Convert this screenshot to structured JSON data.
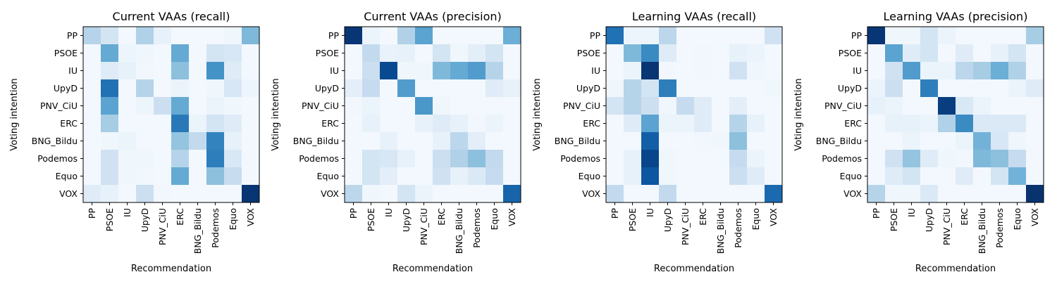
{
  "chart_data": [
    {
      "type": "heatmap",
      "title": "Current VAAs (recall)",
      "xlabel": "Recommendation",
      "ylabel": "Voting intention",
      "categories": [
        "PP",
        "PSOE",
        "IU",
        "UpyD",
        "PNV_CiU",
        "ERC",
        "BNG_Bildu",
        "Podemos",
        "Equo",
        "VOX"
      ],
      "colormap": "Blues",
      "values": [
        [
          0.3,
          0.18,
          0.02,
          0.32,
          0.08,
          0.02,
          0.02,
          0.02,
          0.04,
          0.45
        ],
        [
          0.02,
          0.52,
          0.05,
          0.04,
          0.02,
          0.52,
          0.02,
          0.18,
          0.16,
          0.02
        ],
        [
          0.02,
          0.12,
          0.08,
          0.03,
          0.02,
          0.42,
          0.02,
          0.62,
          0.12,
          0.02
        ],
        [
          0.02,
          0.75,
          0.02,
          0.3,
          0.02,
          0.06,
          0.02,
          0.04,
          0.16,
          0.05
        ],
        [
          0.02,
          0.55,
          0.02,
          0.05,
          0.22,
          0.52,
          0.02,
          0.06,
          0.04,
          0.02
        ],
        [
          0.02,
          0.35,
          0.02,
          0.02,
          0.02,
          0.72,
          0.06,
          0.18,
          0.12,
          0.02
        ],
        [
          0.02,
          0.04,
          0.06,
          0.02,
          0.02,
          0.4,
          0.26,
          0.68,
          0.08,
          0.02
        ],
        [
          0.02,
          0.2,
          0.04,
          0.04,
          0.02,
          0.3,
          0.02,
          0.7,
          0.15,
          0.02
        ],
        [
          0.02,
          0.2,
          0.04,
          0.03,
          0.02,
          0.52,
          0.02,
          0.42,
          0.24,
          0.02
        ],
        [
          0.12,
          0.08,
          0.02,
          0.22,
          0.03,
          0.02,
          0.02,
          0.02,
          0.02,
          0.98
        ]
      ]
    },
    {
      "type": "heatmap",
      "title": "Current VAAs (precision)",
      "xlabel": "Recommendation",
      "ylabel": "Voting intention",
      "categories": [
        "PP",
        "PSOE",
        "IU",
        "UpyD",
        "PNV_CiU",
        "ERC",
        "BNG_Bildu",
        "Podemos",
        "Equo",
        "VOX"
      ],
      "colormap": "Blues",
      "values": [
        [
          0.98,
          0.06,
          0.02,
          0.32,
          0.55,
          0.02,
          0.02,
          0.02,
          0.02,
          0.5
        ],
        [
          0.02,
          0.26,
          0.07,
          0.08,
          0.02,
          0.18,
          0.04,
          0.1,
          0.18,
          0.02
        ],
        [
          0.02,
          0.22,
          0.9,
          0.04,
          0.04,
          0.45,
          0.52,
          0.58,
          0.3,
          0.02
        ],
        [
          0.1,
          0.25,
          0.02,
          0.58,
          0.02,
          0.02,
          0.02,
          0.02,
          0.12,
          0.08
        ],
        [
          0.03,
          0.06,
          0.02,
          0.02,
          0.6,
          0.04,
          0.02,
          0.02,
          0.02,
          0.02
        ],
        [
          0.02,
          0.08,
          0.02,
          0.02,
          0.08,
          0.12,
          0.08,
          0.03,
          0.06,
          0.02
        ],
        [
          0.02,
          0.02,
          0.08,
          0.02,
          0.02,
          0.08,
          0.28,
          0.1,
          0.02,
          0.02
        ],
        [
          0.02,
          0.18,
          0.16,
          0.08,
          0.02,
          0.22,
          0.32,
          0.42,
          0.26,
          0.02
        ],
        [
          0.02,
          0.18,
          0.1,
          0.02,
          0.02,
          0.2,
          0.08,
          0.14,
          0.25,
          0.02
        ],
        [
          0.28,
          0.04,
          0.02,
          0.18,
          0.06,
          0.02,
          0.02,
          0.02,
          0.02,
          0.8
        ]
      ]
    },
    {
      "type": "heatmap",
      "title": "Learning VAAs (recall)",
      "xlabel": "Recommendation",
      "ylabel": "Voting intention",
      "categories": [
        "PP",
        "PSOE",
        "IU",
        "UpyD",
        "PNV_CiU",
        "ERC",
        "BNG_Bildu",
        "Podemos",
        "Equo",
        "VOX"
      ],
      "colormap": "Blues",
      "values": [
        [
          0.75,
          0.05,
          0.05,
          0.28,
          0.02,
          0.02,
          0.02,
          0.02,
          0.02,
          0.2
        ],
        [
          0.02,
          0.45,
          0.65,
          0.12,
          0.02,
          0.03,
          0.02,
          0.08,
          0.06,
          0.02
        ],
        [
          0.02,
          0.06,
          0.98,
          0.03,
          0.02,
          0.03,
          0.02,
          0.2,
          0.04,
          0.02
        ],
        [
          0.04,
          0.3,
          0.18,
          0.7,
          0.02,
          0.02,
          0.02,
          0.02,
          0.02,
          0.04
        ],
        [
          0.18,
          0.3,
          0.22,
          0.04,
          0.25,
          0.12,
          0.02,
          0.1,
          0.02,
          0.02
        ],
        [
          0.02,
          0.12,
          0.55,
          0.06,
          0.06,
          0.12,
          0.02,
          0.3,
          0.08,
          0.02
        ],
        [
          0.02,
          0.02,
          0.82,
          0.02,
          0.02,
          0.03,
          0.04,
          0.42,
          0.02,
          0.02
        ],
        [
          0.02,
          0.08,
          0.92,
          0.04,
          0.02,
          0.02,
          0.02,
          0.25,
          0.06,
          0.02
        ],
        [
          0.02,
          0.08,
          0.85,
          0.04,
          0.02,
          0.02,
          0.02,
          0.22,
          0.12,
          0.02
        ],
        [
          0.26,
          0.02,
          0.02,
          0.26,
          0.02,
          0.02,
          0.02,
          0.02,
          0.02,
          0.78
        ]
      ]
    },
    {
      "type": "heatmap",
      "title": "Learning VAAs (precision)",
      "xlabel": "Recommendation",
      "ylabel": "Voting intention",
      "categories": [
        "PP",
        "PSOE",
        "IU",
        "UpyD",
        "PNV_CiU",
        "ERC",
        "BNG_Bildu",
        "Podemos",
        "Equo",
        "VOX"
      ],
      "colormap": "Blues",
      "values": [
        [
          0.98,
          0.04,
          0.04,
          0.18,
          0.06,
          0.02,
          0.02,
          0.02,
          0.02,
          0.35
        ],
        [
          0.02,
          0.55,
          0.12,
          0.18,
          0.02,
          0.12,
          0.02,
          0.08,
          0.18,
          0.02
        ],
        [
          0.02,
          0.2,
          0.58,
          0.06,
          0.06,
          0.28,
          0.35,
          0.5,
          0.32,
          0.02
        ],
        [
          0.06,
          0.22,
          0.02,
          0.7,
          0.02,
          0.02,
          0.02,
          0.02,
          0.06,
          0.12
        ],
        [
          0.08,
          0.06,
          0.02,
          0.02,
          0.95,
          0.15,
          0.06,
          0.02,
          0.02,
          0.02
        ],
        [
          0.02,
          0.08,
          0.08,
          0.06,
          0.32,
          0.65,
          0.14,
          0.14,
          0.14,
          0.02
        ],
        [
          0.02,
          0.02,
          0.06,
          0.02,
          0.02,
          0.06,
          0.48,
          0.16,
          0.04,
          0.02
        ],
        [
          0.02,
          0.2,
          0.4,
          0.12,
          0.04,
          0.03,
          0.45,
          0.42,
          0.25,
          0.02
        ],
        [
          0.02,
          0.12,
          0.18,
          0.02,
          0.02,
          0.12,
          0.02,
          0.18,
          0.48,
          0.02
        ],
        [
          0.3,
          0.04,
          0.04,
          0.14,
          0.02,
          0.02,
          0.02,
          0.02,
          0.02,
          0.99
        ]
      ]
    }
  ]
}
